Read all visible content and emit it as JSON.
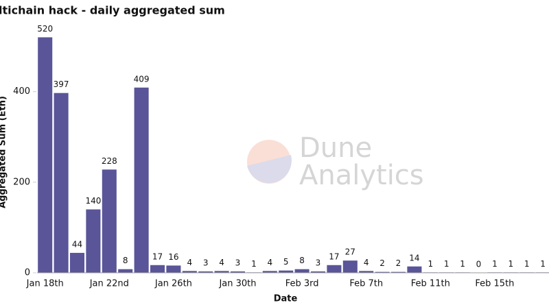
{
  "chart_data": {
    "type": "bar",
    "title": "ltichain hack - daily aggregated sum",
    "x_label": "Date",
    "y_label": "Aggregated Sum (Eth)",
    "watermark": [
      "Dune",
      "Analytics"
    ],
    "categories": [
      "Jan 18th",
      null,
      null,
      null,
      "Jan 22nd",
      null,
      null,
      null,
      "Jan 26th",
      null,
      null,
      null,
      "Jan 30th",
      null,
      null,
      null,
      "Feb 3rd",
      null,
      null,
      null,
      "Feb 7th",
      null,
      null,
      null,
      "Feb 11th",
      null,
      null,
      null,
      "Feb 15th",
      null,
      null,
      null
    ],
    "values": [
      520,
      397,
      44,
      140,
      228,
      8,
      409,
      17,
      16,
      4,
      3,
      4,
      3,
      1,
      4,
      5,
      8,
      3,
      17,
      27,
      4,
      2,
      2,
      14,
      1,
      1,
      1,
      0,
      1,
      1,
      1,
      1
    ],
    "color": "#5a5599",
    "ylim": [
      0,
      560
    ],
    "yticks": [
      0,
      200,
      400
    ],
    "grid": false
  }
}
